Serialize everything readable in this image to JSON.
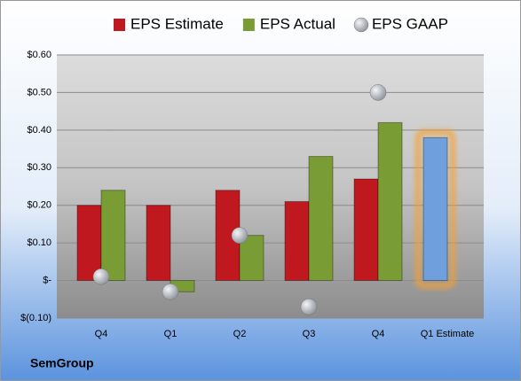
{
  "chart_data": {
    "type": "bar",
    "categories": [
      "Q4",
      "Q1",
      "Q2",
      "Q3",
      "Q4",
      "Q1 Estimate"
    ],
    "series": [
      {
        "name": "EPS Estimate",
        "color": "#c0181f",
        "colors": [
          "#c0181f",
          "#c0181f",
          "#c0181f",
          "#c0181f",
          "#c0181f",
          "#6f9fdc"
        ],
        "values": [
          0.2,
          0.2,
          0.24,
          0.21,
          0.27,
          0.38
        ]
      },
      {
        "name": "EPS Actual",
        "color": "#7a9c34",
        "values": [
          0.24,
          -0.03,
          0.12,
          0.33,
          0.42,
          null
        ]
      },
      {
        "name": "EPS GAAP",
        "type": "scatter",
        "color": "#b8bcc4",
        "values": [
          0.01,
          -0.03,
          0.12,
          -0.07,
          0.5,
          null
        ]
      }
    ],
    "ylim": [
      -0.1,
      0.6
    ],
    "yticks": [
      {
        "value": -0.1,
        "label": "$(0.10)"
      },
      {
        "value": 0,
        "label": "$-"
      },
      {
        "value": 0.1,
        "label": "$0.10"
      },
      {
        "value": 0.2,
        "label": "$0.20"
      },
      {
        "value": 0.3,
        "label": "$0.30"
      },
      {
        "value": 0.4,
        "label": "$0.40"
      },
      {
        "value": 0.5,
        "label": "$0.50"
      },
      {
        "value": 0.6,
        "label": "$0.60"
      }
    ],
    "grid": true,
    "legend": "top",
    "footer": "SemGroup"
  }
}
